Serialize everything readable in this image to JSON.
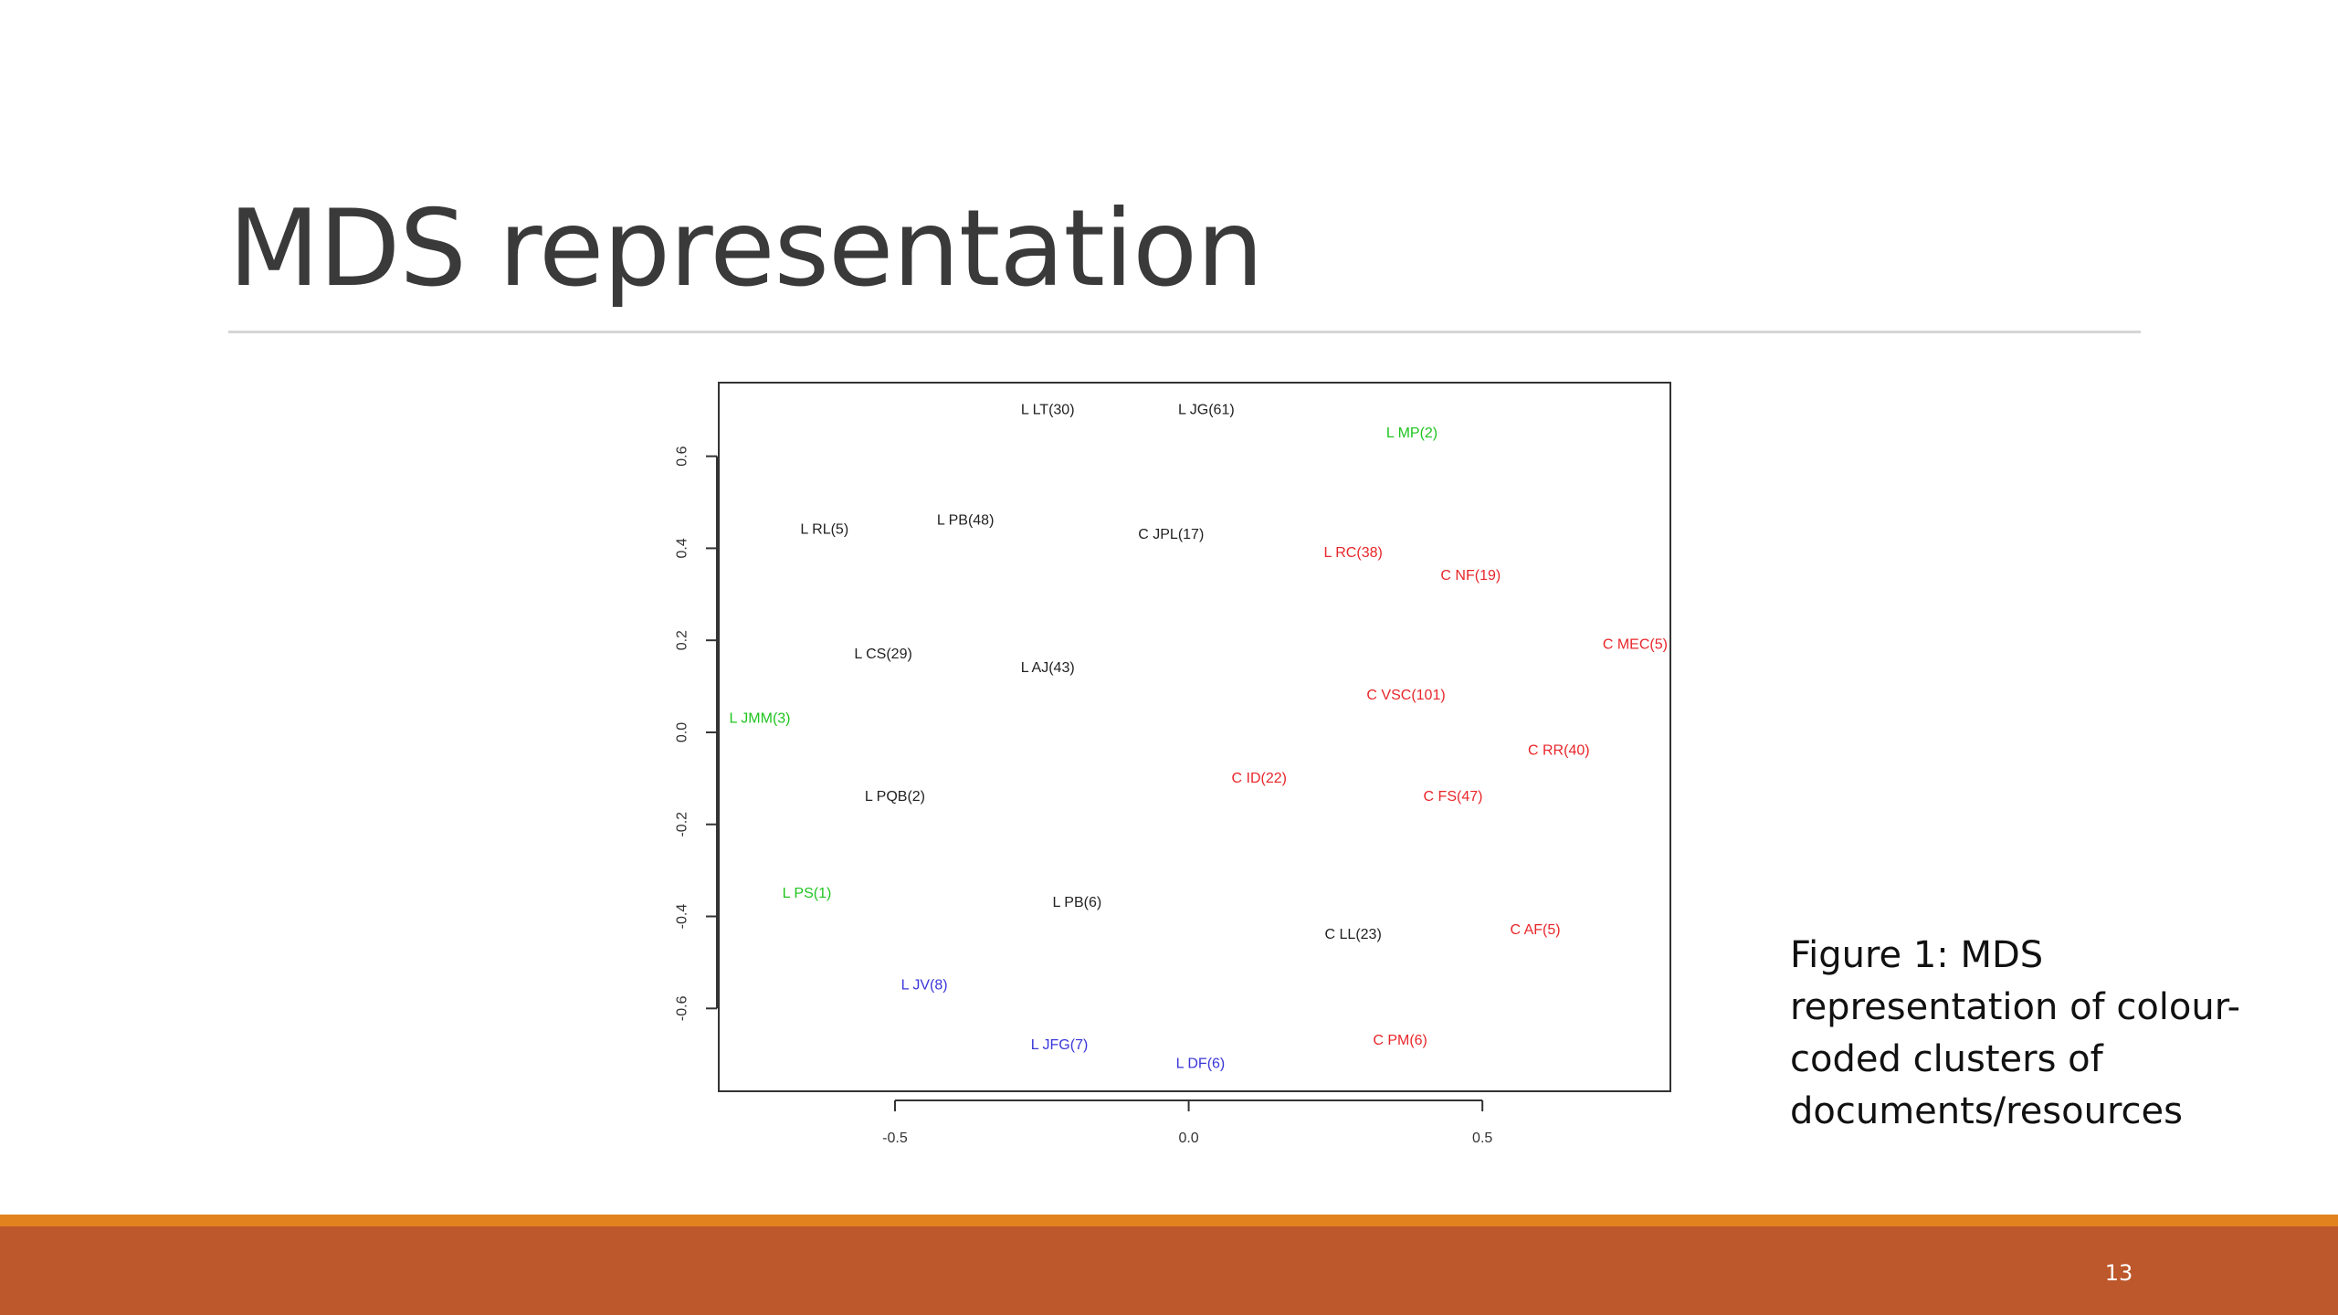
{
  "slide": {
    "title": "MDS representation",
    "caption": "Figure 1: MDS representation of colour-coded clusters of documents/resources",
    "page_number": "13",
    "colors": {
      "footer_stripe": "#e2821f",
      "footer_band": "#bd582c"
    }
  },
  "chart_data": {
    "type": "scatter",
    "title": "",
    "xlabel": "",
    "ylabel": "",
    "xlim": [
      -0.8,
      0.82
    ],
    "ylim": [
      -0.78,
      0.76
    ],
    "x_ticks": [
      -0.5,
      0.0,
      0.5
    ],
    "x_tick_labels": [
      "-0.5",
      "0.0",
      "0.5"
    ],
    "y_ticks": [
      -0.6,
      -0.4,
      -0.2,
      0.0,
      0.2,
      0.4,
      0.6
    ],
    "y_tick_labels": [
      "-0.6",
      "-0.4",
      "-0.2",
      "0.0",
      "0.2",
      "0.4",
      "0.6"
    ],
    "grid": false,
    "colors": {
      "black": "#222222",
      "green": "#1fc41f",
      "red": "#e8262a",
      "blue": "#3a36d8"
    },
    "points": [
      {
        "label": "L LT(30)",
        "x": -0.24,
        "y": 0.7,
        "color": "black"
      },
      {
        "label": "L JG(61)",
        "x": 0.03,
        "y": 0.7,
        "color": "black"
      },
      {
        "label": "L MP(2)",
        "x": 0.38,
        "y": 0.65,
        "color": "green"
      },
      {
        "label": "L RL(5)",
        "x": -0.62,
        "y": 0.44,
        "color": "black"
      },
      {
        "label": "L PB(48)",
        "x": -0.38,
        "y": 0.46,
        "color": "black"
      },
      {
        "label": "C JPL(17)",
        "x": -0.03,
        "y": 0.43,
        "color": "black"
      },
      {
        "label": "L RC(38)",
        "x": 0.28,
        "y": 0.39,
        "color": "red"
      },
      {
        "label": "C NF(19)",
        "x": 0.48,
        "y": 0.34,
        "color": "red"
      },
      {
        "label": "C MEC(5)",
        "x": 0.76,
        "y": 0.19,
        "color": "red"
      },
      {
        "label": "L CS(29)",
        "x": -0.52,
        "y": 0.17,
        "color": "black"
      },
      {
        "label": "L AJ(43)",
        "x": -0.24,
        "y": 0.14,
        "color": "black"
      },
      {
        "label": "C VSC(101)",
        "x": 0.37,
        "y": 0.08,
        "color": "red"
      },
      {
        "label": "L JMM(3)",
        "x": -0.73,
        "y": 0.03,
        "color": "green"
      },
      {
        "label": "C RR(40)",
        "x": 0.63,
        "y": -0.04,
        "color": "red"
      },
      {
        "label": "C ID(22)",
        "x": 0.12,
        "y": -0.1,
        "color": "red"
      },
      {
        "label": "C FS(47)",
        "x": 0.45,
        "y": -0.14,
        "color": "red"
      },
      {
        "label": "L PQB(2)",
        "x": -0.5,
        "y": -0.14,
        "color": "black"
      },
      {
        "label": "L PS(1)",
        "x": -0.65,
        "y": -0.35,
        "color": "green"
      },
      {
        "label": "L PB(6)",
        "x": -0.19,
        "y": -0.37,
        "color": "black"
      },
      {
        "label": "C AF(5)",
        "x": 0.59,
        "y": -0.43,
        "color": "red"
      },
      {
        "label": "C LL(23)",
        "x": 0.28,
        "y": -0.44,
        "color": "black"
      },
      {
        "label": "L JV(8)",
        "x": -0.45,
        "y": -0.55,
        "color": "blue"
      },
      {
        "label": "C PM(6)",
        "x": 0.36,
        "y": -0.67,
        "color": "red"
      },
      {
        "label": "L JFG(7)",
        "x": -0.22,
        "y": -0.68,
        "color": "blue"
      },
      {
        "label": "L DF(6)",
        "x": 0.02,
        "y": -0.72,
        "color": "blue"
      }
    ]
  }
}
